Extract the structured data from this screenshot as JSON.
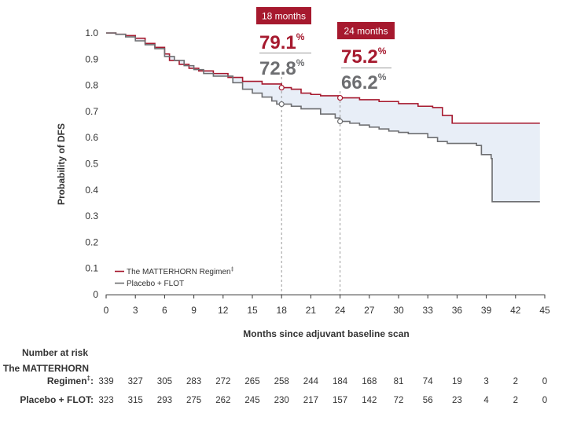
{
  "colors": {
    "matterhorn": "#a6192e",
    "placebo": "#6d6e71",
    "band": "#e8eef7",
    "guide": "#9a9a9a"
  },
  "chart_data": {
    "type": "line",
    "step": true,
    "ylabel": "Probability of DFS",
    "xlabel": "Months since adjuvant baseline scan",
    "xlim": [
      0,
      45
    ],
    "ylim": [
      0,
      1.0
    ],
    "xticks": [
      0,
      3,
      6,
      9,
      12,
      15,
      18,
      21,
      24,
      27,
      30,
      33,
      36,
      39,
      42,
      45
    ],
    "yticks": [
      0,
      0.1,
      0.2,
      0.3,
      0.4,
      0.5,
      0.6,
      0.7,
      0.8,
      0.9,
      1.0
    ],
    "ytick_labels": [
      "0",
      "0.1",
      "0.2",
      "0.3",
      "0.4",
      "0.5",
      "0.6",
      "0.7",
      "0.8",
      "0.9",
      "1.0"
    ],
    "legend_position": "bottom-left",
    "grid": false,
    "series": [
      {
        "name": "The MATTERHORN Regimen",
        "name_sup": "‡",
        "color_key": "matterhorn",
        "points": [
          [
            0,
            1.0
          ],
          [
            1,
            0.995
          ],
          [
            2,
            0.99
          ],
          [
            3,
            0.98
          ],
          [
            4,
            0.96
          ],
          [
            5,
            0.945
          ],
          [
            6,
            0.92
          ],
          [
            6.5,
            0.895
          ],
          [
            7.5,
            0.88
          ],
          [
            8.5,
            0.865
          ],
          [
            9.5,
            0.855
          ],
          [
            11,
            0.845
          ],
          [
            12.5,
            0.83
          ],
          [
            14,
            0.815
          ],
          [
            16,
            0.805
          ],
          [
            18,
            0.791
          ],
          [
            19,
            0.785
          ],
          [
            20,
            0.77
          ],
          [
            21,
            0.765
          ],
          [
            22,
            0.76
          ],
          [
            24,
            0.752
          ],
          [
            26,
            0.745
          ],
          [
            28,
            0.738
          ],
          [
            30,
            0.73
          ],
          [
            32,
            0.72
          ],
          [
            33.5,
            0.715
          ],
          [
            34.5,
            0.685
          ],
          [
            35.5,
            0.655
          ],
          [
            44.5,
            0.655
          ]
        ]
      },
      {
        "name": "Placebo + FLOT",
        "color_key": "placebo",
        "points": [
          [
            0,
            1.0
          ],
          [
            1,
            0.995
          ],
          [
            2,
            0.985
          ],
          [
            3,
            0.97
          ],
          [
            4,
            0.955
          ],
          [
            5,
            0.94
          ],
          [
            6,
            0.91
          ],
          [
            7,
            0.895
          ],
          [
            8,
            0.875
          ],
          [
            9,
            0.86
          ],
          [
            10,
            0.845
          ],
          [
            11,
            0.835
          ],
          [
            13,
            0.81
          ],
          [
            14,
            0.785
          ],
          [
            15,
            0.77
          ],
          [
            16,
            0.755
          ],
          [
            17,
            0.74
          ],
          [
            17.5,
            0.728
          ],
          [
            19,
            0.72
          ],
          [
            20,
            0.71
          ],
          [
            22,
            0.69
          ],
          [
            23.5,
            0.675
          ],
          [
            24,
            0.662
          ],
          [
            25,
            0.655
          ],
          [
            26,
            0.648
          ],
          [
            27,
            0.64
          ],
          [
            28,
            0.633
          ],
          [
            29,
            0.625
          ],
          [
            30,
            0.62
          ],
          [
            31,
            0.615
          ],
          [
            33,
            0.6
          ],
          [
            34,
            0.585
          ],
          [
            35,
            0.578
          ],
          [
            38,
            0.57
          ],
          [
            38.5,
            0.535
          ],
          [
            39.5,
            0.52
          ],
          [
            39.6,
            0.355
          ],
          [
            44.5,
            0.355
          ]
        ]
      }
    ],
    "annotations": [
      {
        "x": 18,
        "label": "18 months",
        "value_a": "79.1",
        "value_b": "72.8",
        "unit": "%",
        "y_a": 0.791,
        "y_b": 0.728
      },
      {
        "x": 24,
        "label": "24 months",
        "value_a": "75.2",
        "value_b": "66.2",
        "unit": "%",
        "y_a": 0.752,
        "y_b": 0.662
      }
    ],
    "risk_table": {
      "title": "Number at risk",
      "row1_label_line1": "The MATTERHORN",
      "row1_label_line2": "Regimen",
      "row1_label_sup": "‡",
      "row1_label_end": ":",
      "row2_label": "Placebo +  FLOT:",
      "times": [
        0,
        3,
        6,
        9,
        12,
        15,
        18,
        21,
        24,
        27,
        30,
        33,
        36,
        39,
        42,
        45
      ],
      "row1": [
        "339",
        "327",
        "305",
        "283",
        "272",
        "265",
        "258",
        "244",
        "184",
        "168",
        "81",
        "74",
        "19",
        "3",
        "2",
        "0"
      ],
      "row2": [
        "323",
        "315",
        "293",
        "275",
        "262",
        "245",
        "230",
        "217",
        "157",
        "142",
        "72",
        "56",
        "23",
        "4",
        "2",
        "0"
      ]
    }
  }
}
